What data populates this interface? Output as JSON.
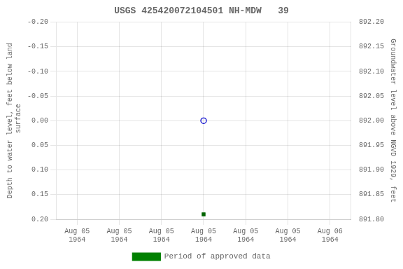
{
  "chart_data": {
    "type": "scatter",
    "title": "USGS 425420072104501 NH-MDW   39",
    "ylabel": "Depth to water level, feet below land\n surface",
    "y2label": "Groundwater level above NGVD 1929, feet",
    "categories": [
      "Aug 05\n1964",
      "Aug 05\n1964",
      "Aug 05\n1964",
      "Aug 05\n1964",
      "Aug 05\n1964",
      "Aug 05\n1964",
      "Aug 06\n1964"
    ],
    "ylim": [
      0.2,
      -0.2
    ],
    "yticks": [
      {
        "value": -0.2,
        "label": "-0.20"
      },
      -0.15,
      {
        "value": -0.1,
        "label": "-0.10"
      },
      -0.05,
      {
        "value": 0,
        "label": "0.00"
      },
      0.05,
      {
        "value": 0.1,
        "label": "0.10"
      },
      0.15,
      {
        "value": 0.2,
        "label": "0.20"
      }
    ],
    "y2lim": [
      891.8,
      892.2
    ],
    "y2ticks": [
      {
        "value": 892.2,
        "label": "892.20"
      },
      892.15,
      {
        "value": 892.1,
        "label": "892.10"
      },
      892.05,
      {
        "value": 892,
        "label": "892.00"
      },
      891.95,
      {
        "value": 891.9,
        "label": "891.90"
      },
      891.85,
      {
        "value": 891.8,
        "label": "891.80"
      }
    ],
    "grid": true,
    "legend": "bottom",
    "series": [
      {
        "color": "#0000cc",
        "marker": "circle_open",
        "values": [
          null,
          null,
          null,
          0.0,
          null,
          null,
          null
        ]
      },
      {
        "color": "#006400",
        "marker": "square",
        "values": [
          null,
          null,
          null,
          0.19,
          null,
          null,
          null
        ]
      },
      {
        "name": "Period of approved data",
        "color": "#008000",
        "values": [
          null,
          null,
          null,
          null,
          null,
          null,
          null
        ]
      }
    ]
  }
}
